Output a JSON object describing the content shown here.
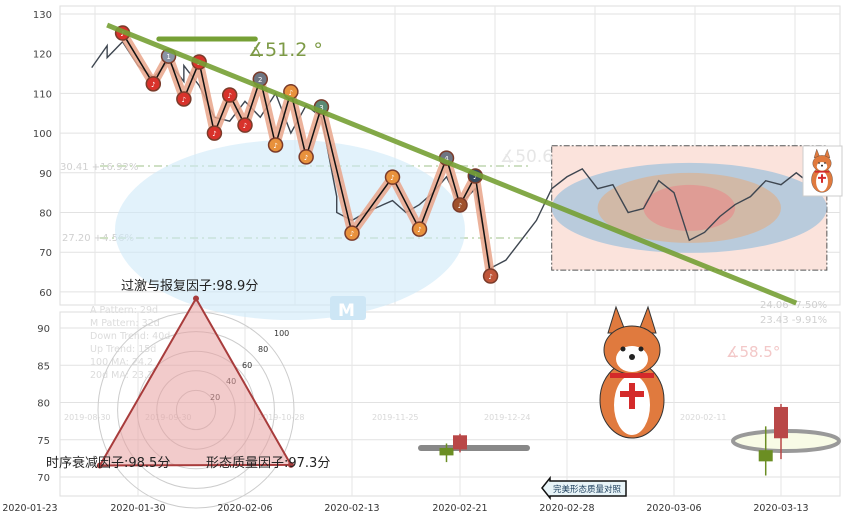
{
  "chart_data": {
    "type": "line",
    "x_ticks": [
      "2020-01-23",
      "2020-01-30",
      "2020-02-06",
      "2020-02-13",
      "2020-02-21",
      "2020-02-28",
      "2020-03-06",
      "2020-03-13"
    ],
    "top_panel": {
      "y_ticks": [
        130,
        120,
        110,
        100,
        90,
        80,
        70,
        60
      ],
      "ylim": [
        58,
        131
      ],
      "grid": true,
      "price_line": [
        [
          "2020-01-27",
          116.5
        ],
        [
          "2020-01-28",
          122
        ],
        [
          "2020-01-28",
          119
        ],
        [
          "2020-01-29",
          123
        ],
        [
          "2020-01-30",
          117
        ],
        [
          "2020-01-31",
          114
        ],
        [
          "2020-02-01",
          118
        ],
        [
          "2020-02-02",
          113
        ],
        [
          "2020-02-02",
          117
        ],
        [
          "2020-02-03",
          112
        ],
        [
          "2020-02-04",
          104
        ],
        [
          "2020-02-05",
          103
        ],
        [
          "2020-02-06",
          108
        ],
        [
          "2020-02-07",
          104
        ],
        [
          "2020-02-08",
          110
        ],
        [
          "2020-02-09",
          100
        ],
        [
          "2020-02-10",
          107
        ],
        [
          "2020-02-11",
          104
        ],
        [
          "2020-02-12",
          84
        ],
        [
          "2020-02-12",
          80
        ],
        [
          "2020-02-13",
          78
        ],
        [
          "2020-02-14",
          80
        ],
        [
          "2020-02-16",
          83
        ],
        [
          "2020-02-17",
          80
        ],
        [
          "2020-02-18",
          82
        ],
        [
          "2020-02-19",
          85
        ],
        [
          "2020-02-20",
          89
        ],
        [
          "2020-02-21",
          82
        ],
        [
          "2020-02-22",
          86
        ],
        [
          "2020-02-23",
          66
        ],
        [
          "2020-02-24",
          68
        ],
        [
          "2020-02-25",
          73
        ],
        [
          "2020-02-26",
          78
        ],
        [
          "2020-02-27",
          86
        ],
        [
          "2020-02-28",
          89
        ],
        [
          "2020-02-29",
          91
        ],
        [
          "2020-03-01",
          86
        ],
        [
          "2020-03-02",
          87
        ],
        [
          "2020-03-03",
          80
        ],
        [
          "2020-03-04",
          81
        ],
        [
          "2020-03-05",
          88
        ],
        [
          "2020-03-06",
          85
        ],
        [
          "2020-03-07",
          73
        ],
        [
          "2020-03-08",
          75
        ],
        [
          "2020-03-09",
          79
        ],
        [
          "2020-03-10",
          82
        ],
        [
          "2020-03-11",
          84
        ],
        [
          "2020-03-12",
          88
        ],
        [
          "2020-03-13",
          87
        ],
        [
          "2020-03-14",
          90
        ],
        [
          "2020-03-15",
          87
        ],
        [
          "2020-03-15",
          91
        ],
        [
          "2020-03-16",
          85
        ]
      ],
      "zigzag": [
        {
          "date": "2020-01-29",
          "value": 125.2,
          "color": "#d8322b",
          "marker": "red"
        },
        {
          "date": "2020-01-31",
          "value": 112.4,
          "color": "#d8322b",
          "marker": "red"
        },
        {
          "date": "2020-02-01",
          "value": 119.4,
          "color": "#8a94a6",
          "marker": "1"
        },
        {
          "date": "2020-02-02",
          "value": 108.6,
          "color": "#d8322b",
          "marker": "red"
        },
        {
          "date": "2020-02-03",
          "value": 117.9,
          "color": "#d8322b",
          "marker": "red"
        },
        {
          "date": "2020-02-04",
          "value": 100.0,
          "color": "#d8322b",
          "marker": "red"
        },
        {
          "date": "2020-02-05",
          "value": 109.6,
          "color": "#d8322b",
          "marker": "red"
        },
        {
          "date": "2020-02-06",
          "value": 102.0,
          "color": "#d8322b",
          "marker": "red"
        },
        {
          "date": "2020-02-07",
          "value": 113.6,
          "color": "#6f7683",
          "marker": "2"
        },
        {
          "date": "2020-02-08",
          "value": 97.0,
          "color": "#e8913c",
          "marker": "orange"
        },
        {
          "date": "2020-02-09",
          "value": 110.4,
          "color": "#e8913c",
          "marker": "orange"
        },
        {
          "date": "2020-02-10",
          "value": 94.0,
          "color": "#e8913c",
          "marker": "orange"
        },
        {
          "date": "2020-02-11",
          "value": 106.6,
          "color": "#5b8a74",
          "marker": "3"
        },
        {
          "date": "2020-02-13",
          "value": 74.8,
          "color": "#e8913c",
          "marker": "orange"
        },
        {
          "date": "2020-02-16",
          "value": 88.9,
          "color": "#e8913c",
          "marker": "orange"
        },
        {
          "date": "2020-02-18",
          "value": 75.8,
          "color": "#e8913c",
          "marker": "orange"
        },
        {
          "date": "2020-02-20",
          "value": 93.7,
          "color": "#6f7683",
          "marker": "4"
        },
        {
          "date": "2020-02-21",
          "value": 81.9,
          "color": "#a0522d",
          "marker": "brown"
        },
        {
          "date": "2020-02-22",
          "value": 89.2,
          "color": "#34495e",
          "marker": "navy"
        },
        {
          "date": "2020-02-23",
          "value": 64.0,
          "color": "#c0563a",
          "marker": "brown"
        }
      ],
      "trend_line": [
        [
          "2020-01-28",
          127.2
        ],
        [
          "2020-03-14",
          57.2
        ]
      ],
      "trend_color": "#76a035",
      "horizontal_segment": [
        [
          "2020-02-02",
          123.7
        ],
        [
          "2020-02-07",
          123.7
        ]
      ],
      "angle_label": "∡51.2 °",
      "faint_angle_label": "∡50.6",
      "range_box": {
        "start": "2020-02-27",
        "end": "2020-03-16",
        "high": 96.8,
        "low": 65.5
      },
      "faint_labels": [
        "30.41 +16.92%",
        "27.20 +4.56%",
        "24.06 -7.50%",
        "23.43 -9.91%"
      ]
    },
    "bottom_panel": {
      "y_ticks": [
        90,
        85,
        80,
        75,
        70
      ],
      "ylim": [
        67,
        93
      ],
      "candles": [
        {
          "date": "2020-02-20",
          "open": 73.9,
          "close": 72.9,
          "high": 74.5,
          "low": 72.0,
          "color": "#6b8e23"
        },
        {
          "date": "2020-02-21",
          "open": 73.7,
          "close": 75.6,
          "high": 75.8,
          "low": 73.3,
          "color": "#b94747"
        },
        {
          "date": "2020-03-12",
          "open": 73.6,
          "close": 72.1,
          "high": 76.8,
          "low": 70.2,
          "color": "#6b8e23"
        },
        {
          "date": "2020-03-13",
          "open": 75.2,
          "close": 79.4,
          "high": 79.8,
          "low": 72.4,
          "color": "#b94747"
        }
      ],
      "faint_angle_label": "∡58.5°",
      "faint_legend": [
        "A Pattern: 29d",
        "M Pattern: 32d",
        "Down Trend: 40d",
        "Up Trend: 15d",
        "100 MA: 24.2",
        "20d MA: 23.1"
      ],
      "faint_dates": [
        "2019-08-30",
        "2019-09-30",
        "2019-10-28",
        "2019-11-25",
        "2019-12-24",
        "2020-02-11"
      ]
    },
    "radar": {
      "axis_ticks": [
        20,
        40,
        60,
        80,
        100
      ],
      "factors": [
        {
          "label": "过激与报复因子:98.9分",
          "value": 98.9
        },
        {
          "label": "时序衰减因子:98.5分",
          "value": 98.5
        },
        {
          "label": "形态质量因子:97.3分",
          "value": 97.3
        }
      ],
      "fill": "#e8a0a0",
      "stroke": "#a83c3c"
    }
  },
  "compare_button": {
    "label": "完美形态质量对照"
  }
}
